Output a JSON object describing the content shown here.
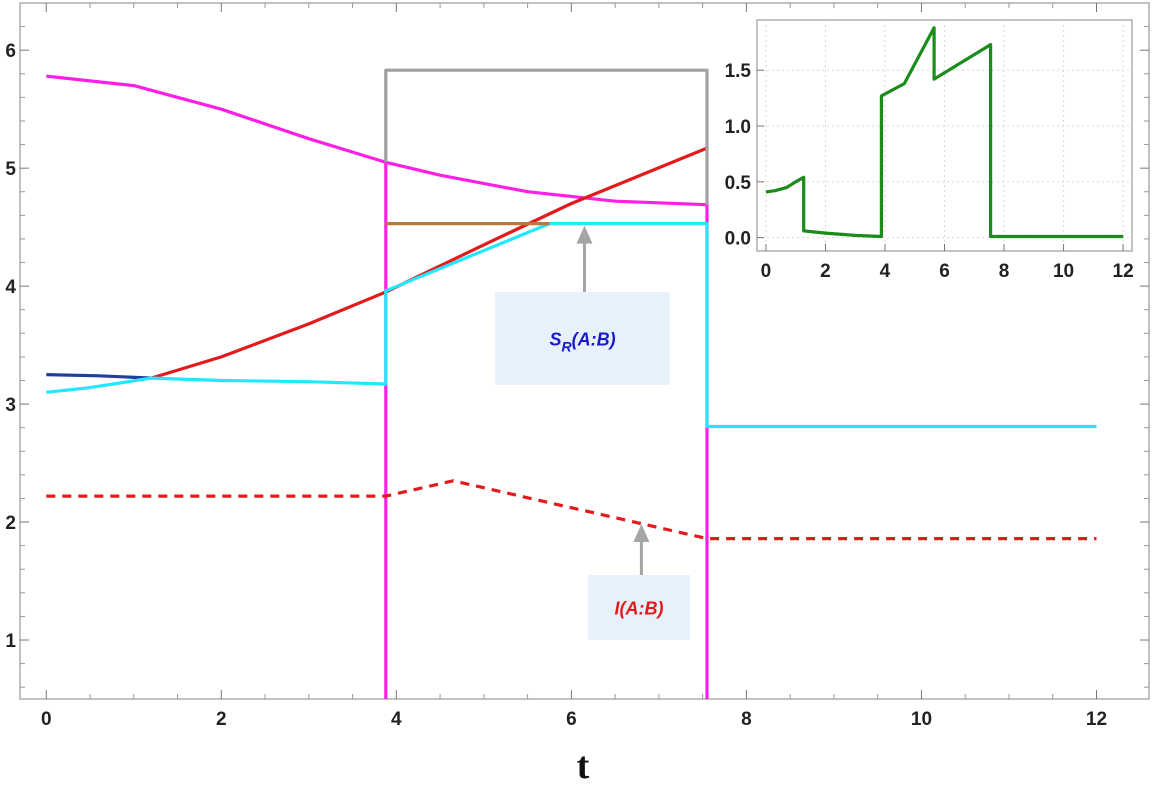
{
  "chart_data": [
    {
      "type": "line",
      "title": "",
      "xlabel": "t",
      "ylabel": "",
      "xlim": [
        -0.3,
        12.6
      ],
      "ylim": [
        0.5,
        6.4
      ],
      "xticks": [
        0,
        2,
        4,
        6,
        8,
        10,
        12
      ],
      "yticks": [
        1,
        2,
        3,
        4,
        5,
        6
      ],
      "grid": false,
      "colors": {
        "magenta": "#ff1fe6",
        "red": "#e31a1c",
        "navy": "#1f3fa0",
        "cyan": "#22e8ff",
        "orange": "#b8793a",
        "gray": "#a0a0a0",
        "dashed_red": "#e31a1c"
      },
      "series": [
        {
          "color": "magenta",
          "dash": false,
          "x": [
            0,
            1,
            2,
            3,
            3.88,
            4.5,
            5.5,
            6.5,
            7.55,
            7.55,
            7.55
          ],
          "y": [
            5.78,
            5.7,
            5.5,
            5.25,
            5.05,
            4.94,
            4.8,
            4.72,
            4.69,
            4.62,
            0.5
          ]
        },
        {
          "color": "magenta",
          "dash": false,
          "x": [
            3.88,
            3.88
          ],
          "y": [
            5.05,
            0.5
          ]
        },
        {
          "color": "red",
          "dash": false,
          "x": [
            1.2,
            2,
            3,
            3.88,
            5,
            6,
            7.55
          ],
          "y": [
            3.22,
            3.4,
            3.68,
            3.95,
            4.35,
            4.7,
            5.17
          ]
        },
        {
          "color": "navy",
          "dash": false,
          "x": [
            0,
            0.6,
            1.2
          ],
          "y": [
            3.25,
            3.24,
            3.22
          ]
        },
        {
          "color": "cyan",
          "dash": false,
          "x": [
            0,
            0.5,
            1.2,
            2,
            3,
            3.88,
            3.88,
            5.75,
            7.55,
            7.55,
            12
          ],
          "y": [
            3.1,
            3.14,
            3.22,
            3.2,
            3.19,
            3.17,
            3.96,
            4.53,
            4.53,
            2.81,
            2.81
          ]
        },
        {
          "color": "orange",
          "dash": false,
          "x": [
            3.88,
            5.75
          ],
          "y": [
            4.53,
            4.53
          ]
        },
        {
          "color": "gray",
          "dash": false,
          "x": [
            3.88,
            3.88,
            7.55,
            7.55
          ],
          "y": [
            5.05,
            5.83,
            5.83,
            4.69
          ]
        },
        {
          "color": "dashed_red",
          "dash": true,
          "x": [
            0,
            3.88,
            4.65,
            7.55,
            12
          ],
          "y": [
            2.22,
            2.22,
            2.35,
            1.86,
            1.86
          ]
        }
      ],
      "annotations": [
        {
          "label": "S",
          "subscript": "R",
          "suffix": "(A:B)",
          "color": "#1a1acc",
          "arrow_x": 6.15,
          "arrow_y": 4.53
        },
        {
          "label": "I(A:B)",
          "subscript": "",
          "suffix": "",
          "color": "#e31a1c",
          "arrow_x": 6.8,
          "arrow_y": 2.0
        }
      ]
    },
    {
      "type": "line",
      "title": "",
      "xlabel": "",
      "ylabel": "",
      "xlim": [
        -0.3,
        12.3
      ],
      "ylim": [
        -0.12,
        1.95
      ],
      "xticks": [
        0,
        2,
        4,
        6,
        8,
        10,
        12
      ],
      "yticks": [
        0.0,
        0.5,
        1.0,
        1.5
      ],
      "ytick_labels": [
        "0.0",
        "0.5",
        "1.0",
        "1.5"
      ],
      "grid": true,
      "series": [
        {
          "color": "#1a8c1a",
          "x": [
            0,
            0.3,
            0.7,
            1.0,
            1.27,
            1.27,
            2.0,
            3.0,
            3.88,
            3.88,
            4.65,
            5.65,
            5.65,
            7.55,
            7.55,
            12
          ],
          "y": [
            0.41,
            0.42,
            0.45,
            0.5,
            0.54,
            0.06,
            0.04,
            0.02,
            0.01,
            1.27,
            1.38,
            1.88,
            1.42,
            1.73,
            0.01,
            0.01
          ]
        }
      ]
    }
  ]
}
